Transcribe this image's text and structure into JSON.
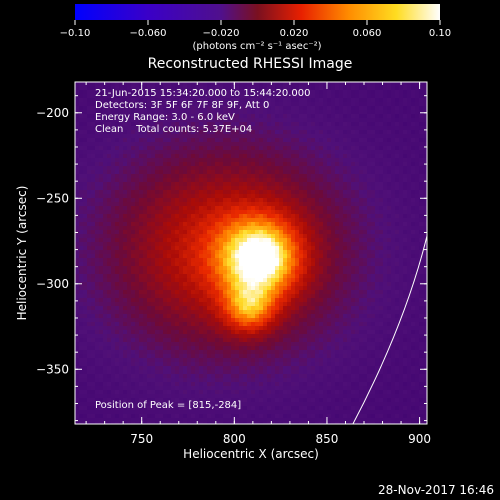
{
  "chart_data": {
    "type": "heatmap",
    "title": "Reconstructed RHESSI Image",
    "xlabel": "Heliocentric X (arcsec)",
    "ylabel": "Heliocentric Y (arcsec)",
    "xlim": [
      714,
      904
    ],
    "ylim": [
      -382,
      -182
    ],
    "xticks": [
      750,
      800,
      850,
      900
    ],
    "yticks": [
      -200,
      -250,
      -300,
      -350
    ],
    "xtick_labels": [
      "750",
      "800",
      "850",
      "900"
    ],
    "ytick_labels": [
      "−200",
      "−250",
      "−300",
      "−350"
    ],
    "colorbar": {
      "range": [
        -0.1,
        0.1
      ],
      "ticks": [
        -0.1,
        -0.06,
        -0.02,
        0.02,
        0.06,
        0.1
      ],
      "tick_labels": [
        "−0.10",
        "−0.060",
        "−0.020",
        "0.020",
        "0.060",
        "0.10"
      ],
      "unit_label": "(photons cm⁻² s⁻¹ asec⁻²)",
      "colors": [
        "#0000ff",
        "#3a00c8",
        "#50108c",
        "#7a1020",
        "#e82000",
        "#ff8c00",
        "#ffdc20",
        "#ffffff"
      ]
    },
    "annotations": {
      "time": "21-Jun-2015 15:34:20.000 to 15:44:20.000",
      "detectors": "Detectors: 3F 5F 6F 7F 8F 9F, Att 0",
      "energy": "Energy Range: 3.0 - 6.0 keV",
      "clean": "Clean    Total counts: 5.37E+04",
      "peak": "Position of Peak = [815,-284]"
    },
    "sources": [
      {
        "x": 813,
        "y": -284,
        "peak": 0.1
      },
      {
        "x": 807,
        "y": -314,
        "peak": 0.07
      }
    ],
    "limb": {
      "x": [
        904,
        864
      ],
      "y": [
        -272,
        -382
      ]
    },
    "footer": "28-Nov-2017 16:46"
  }
}
